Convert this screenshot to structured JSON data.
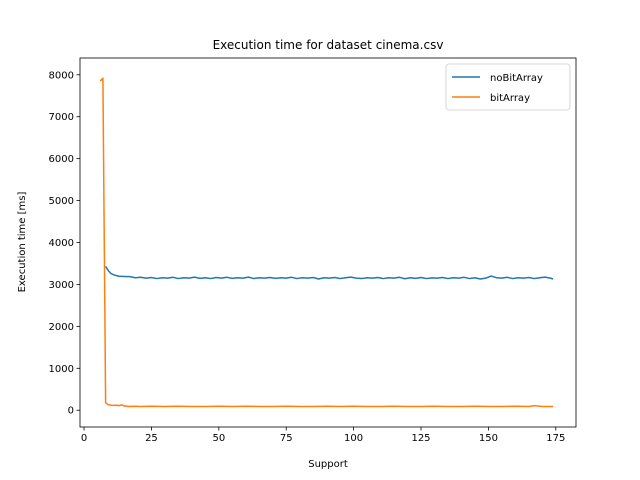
{
  "chart_data": {
    "type": "line",
    "title": "Execution time for dataset cinema.csv",
    "xlabel": "Support",
    "ylabel": "Execution time [ms]",
    "xlim": [
      -1.5,
      182.5
    ],
    "ylim": [
      -400,
      8400
    ],
    "xticks": [
      0,
      25,
      50,
      75,
      100,
      125,
      150,
      175
    ],
    "yticks": [
      0,
      1000,
      2000,
      3000,
      4000,
      5000,
      6000,
      7000,
      8000
    ],
    "grid": false,
    "legend": "top-right",
    "series": [
      {
        "name": "noBitArray",
        "color": "#1f77b4",
        "x": [
          8,
          9,
          10,
          11,
          12,
          13,
          15,
          17,
          19,
          21,
          23,
          25,
          27,
          29,
          31,
          33,
          35,
          37,
          39,
          41,
          43,
          45,
          47,
          49,
          51,
          53,
          55,
          57,
          59,
          61,
          63,
          65,
          67,
          69,
          71,
          73,
          75,
          77,
          79,
          81,
          83,
          85,
          87,
          89,
          91,
          93,
          95,
          97,
          99,
          101,
          103,
          105,
          107,
          109,
          111,
          113,
          115,
          117,
          119,
          121,
          123,
          125,
          127,
          129,
          131,
          133,
          135,
          137,
          139,
          141,
          143,
          145,
          147,
          149,
          151,
          153,
          155,
          157,
          159,
          161,
          163,
          165,
          167,
          169,
          171,
          173,
          174
        ],
        "y": [
          3430,
          3330,
          3260,
          3230,
          3210,
          3195,
          3190,
          3185,
          3160,
          3170,
          3150,
          3165,
          3140,
          3160,
          3150,
          3170,
          3140,
          3160,
          3150,
          3175,
          3145,
          3160,
          3140,
          3165,
          3150,
          3170,
          3145,
          3160,
          3150,
          3175,
          3140,
          3160,
          3150,
          3165,
          3145,
          3160,
          3150,
          3170,
          3140,
          3160,
          3150,
          3165,
          3130,
          3160,
          3150,
          3165,
          3140,
          3160,
          3175,
          3150,
          3140,
          3160,
          3150,
          3165,
          3140,
          3160,
          3150,
          3170,
          3135,
          3160,
          3145,
          3165,
          3140,
          3155,
          3150,
          3165,
          3140,
          3160,
          3150,
          3170,
          3140,
          3160,
          3130,
          3150,
          3200,
          3160,
          3150,
          3170,
          3140,
          3160,
          3150,
          3165,
          3140,
          3160,
          3175,
          3150,
          3130
        ]
      },
      {
        "name": "bitArray",
        "color": "#ff7f0e",
        "x": [
          6,
          7,
          8,
          9,
          10,
          11,
          12,
          13,
          14,
          15,
          17,
          19,
          21,
          25,
          30,
          35,
          40,
          45,
          50,
          55,
          60,
          65,
          70,
          75,
          80,
          85,
          90,
          95,
          100,
          105,
          110,
          115,
          120,
          125,
          130,
          135,
          140,
          145,
          150,
          155,
          160,
          165,
          167,
          170,
          174
        ],
        "y": [
          7850,
          7920,
          180,
          130,
          120,
          115,
          120,
          110,
          130,
          100,
          90,
          95,
          90,
          95,
          90,
          95,
          90,
          90,
          95,
          90,
          95,
          90,
          90,
          95,
          90,
          90,
          95,
          90,
          95,
          90,
          90,
          95,
          90,
          90,
          95,
          90,
          90,
          95,
          90,
          90,
          95,
          90,
          110,
          90,
          90
        ]
      }
    ]
  }
}
